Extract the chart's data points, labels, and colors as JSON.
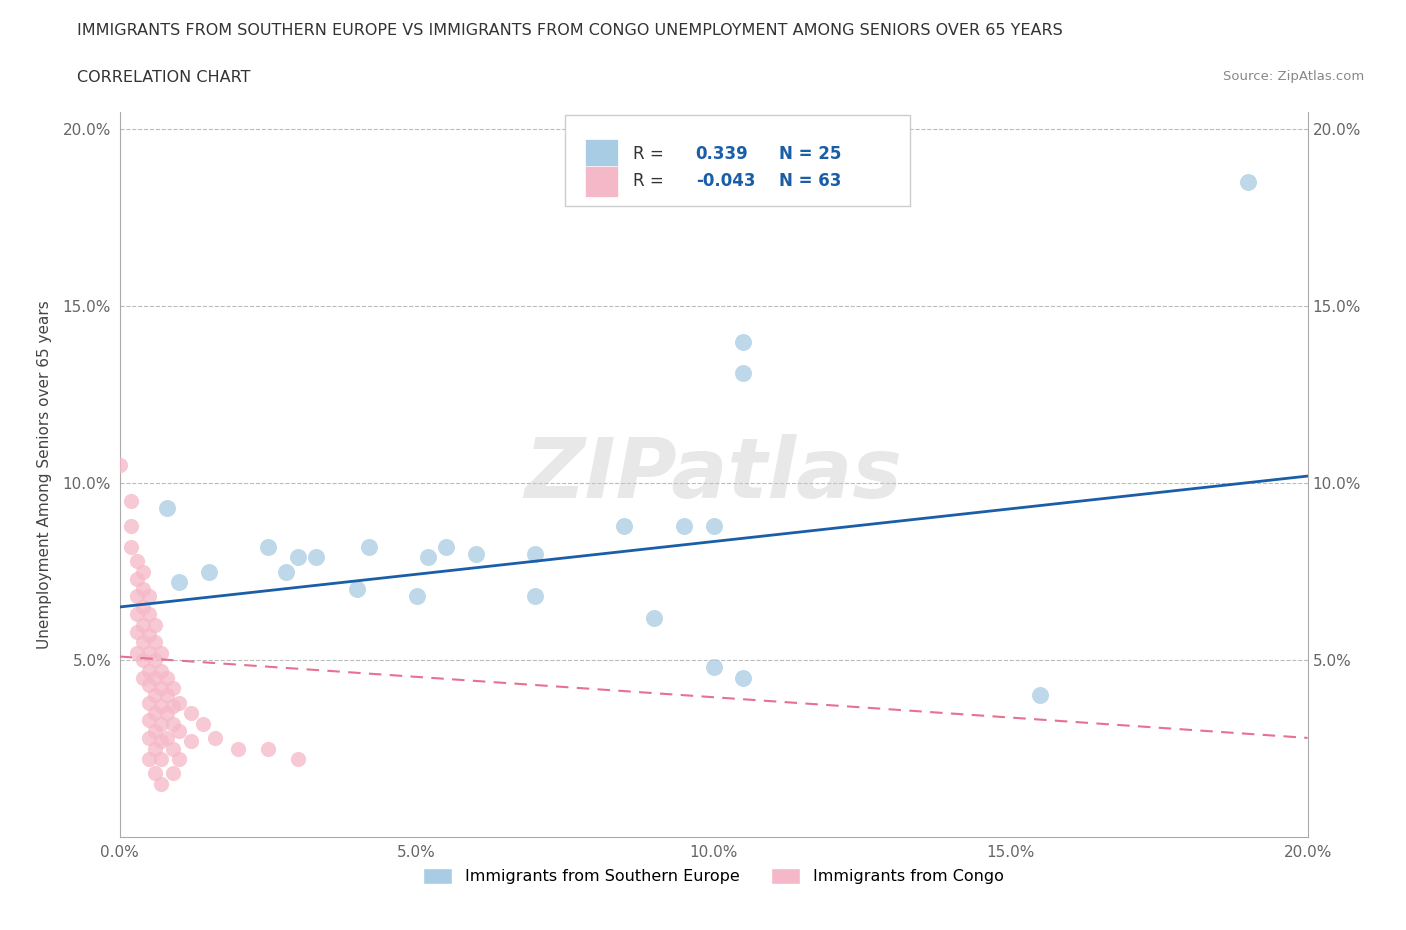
{
  "title_line1": "IMMIGRANTS FROM SOUTHERN EUROPE VS IMMIGRANTS FROM CONGO UNEMPLOYMENT AMONG SENIORS OVER 65 YEARS",
  "title_line2": "CORRELATION CHART",
  "source": "Source: ZipAtlas.com",
  "ylabel": "Unemployment Among Seniors over 65 years",
  "watermark": "ZIPatlas",
  "xmin": 0.0,
  "xmax": 0.2,
  "ymin": 0.0,
  "ymax": 0.205,
  "xticks": [
    0.0,
    0.05,
    0.1,
    0.15,
    0.2
  ],
  "yticks": [
    0.0,
    0.05,
    0.1,
    0.15,
    0.2
  ],
  "xtick_labels": [
    "0.0%",
    "5.0%",
    "10.0%",
    "15.0%",
    "20.0%"
  ],
  "ytick_labels": [
    "",
    "5.0%",
    "10.0%",
    "15.0%",
    "20.0%"
  ],
  "legend1_label": "Immigrants from Southern Europe",
  "legend2_label": "Immigrants from Congo",
  "R1": 0.339,
  "N1": 25,
  "R2": -0.043,
  "N2": 63,
  "blue_color": "#a8cce4",
  "pink_color": "#f5b8c8",
  "blue_line_color": "#1a5ea8",
  "pink_line_color": "#e87090",
  "blue_line_start_y": 0.065,
  "blue_line_end_y": 0.102,
  "pink_line_start_y": 0.051,
  "pink_line_end_y": 0.028,
  "scatter_blue": [
    [
      0.008,
      0.093
    ],
    [
      0.01,
      0.072
    ],
    [
      0.015,
      0.075
    ],
    [
      0.025,
      0.082
    ],
    [
      0.028,
      0.075
    ],
    [
      0.03,
      0.079
    ],
    [
      0.033,
      0.079
    ],
    [
      0.04,
      0.07
    ],
    [
      0.042,
      0.082
    ],
    [
      0.05,
      0.068
    ],
    [
      0.052,
      0.079
    ],
    [
      0.055,
      0.082
    ],
    [
      0.06,
      0.08
    ],
    [
      0.07,
      0.068
    ],
    [
      0.07,
      0.08
    ],
    [
      0.085,
      0.088
    ],
    [
      0.09,
      0.062
    ],
    [
      0.095,
      0.088
    ],
    [
      0.1,
      0.088
    ],
    [
      0.105,
      0.14
    ],
    [
      0.105,
      0.131
    ],
    [
      0.1,
      0.048
    ],
    [
      0.105,
      0.045
    ],
    [
      0.155,
      0.04
    ],
    [
      0.19,
      0.185
    ]
  ],
  "scatter_pink": [
    [
      0.0,
      0.105
    ],
    [
      0.002,
      0.095
    ],
    [
      0.002,
      0.088
    ],
    [
      0.002,
      0.082
    ],
    [
      0.003,
      0.078
    ],
    [
      0.003,
      0.073
    ],
    [
      0.003,
      0.068
    ],
    [
      0.003,
      0.063
    ],
    [
      0.003,
      0.058
    ],
    [
      0.003,
      0.052
    ],
    [
      0.004,
      0.075
    ],
    [
      0.004,
      0.07
    ],
    [
      0.004,
      0.065
    ],
    [
      0.004,
      0.06
    ],
    [
      0.004,
      0.055
    ],
    [
      0.004,
      0.05
    ],
    [
      0.004,
      0.045
    ],
    [
      0.005,
      0.068
    ],
    [
      0.005,
      0.063
    ],
    [
      0.005,
      0.057
    ],
    [
      0.005,
      0.052
    ],
    [
      0.005,
      0.047
    ],
    [
      0.005,
      0.043
    ],
    [
      0.005,
      0.038
    ],
    [
      0.005,
      0.033
    ],
    [
      0.005,
      0.028
    ],
    [
      0.005,
      0.022
    ],
    [
      0.006,
      0.06
    ],
    [
      0.006,
      0.055
    ],
    [
      0.006,
      0.05
    ],
    [
      0.006,
      0.045
    ],
    [
      0.006,
      0.04
    ],
    [
      0.006,
      0.035
    ],
    [
      0.006,
      0.03
    ],
    [
      0.006,
      0.025
    ],
    [
      0.006,
      0.018
    ],
    [
      0.007,
      0.052
    ],
    [
      0.007,
      0.047
    ],
    [
      0.007,
      0.042
    ],
    [
      0.007,
      0.037
    ],
    [
      0.007,
      0.032
    ],
    [
      0.007,
      0.027
    ],
    [
      0.007,
      0.022
    ],
    [
      0.007,
      0.015
    ],
    [
      0.008,
      0.045
    ],
    [
      0.008,
      0.04
    ],
    [
      0.008,
      0.035
    ],
    [
      0.008,
      0.028
    ],
    [
      0.009,
      0.042
    ],
    [
      0.009,
      0.037
    ],
    [
      0.009,
      0.032
    ],
    [
      0.009,
      0.025
    ],
    [
      0.009,
      0.018
    ],
    [
      0.01,
      0.038
    ],
    [
      0.01,
      0.03
    ],
    [
      0.01,
      0.022
    ],
    [
      0.012,
      0.035
    ],
    [
      0.012,
      0.027
    ],
    [
      0.014,
      0.032
    ],
    [
      0.016,
      0.028
    ],
    [
      0.02,
      0.025
    ],
    [
      0.025,
      0.025
    ],
    [
      0.03,
      0.022
    ]
  ]
}
